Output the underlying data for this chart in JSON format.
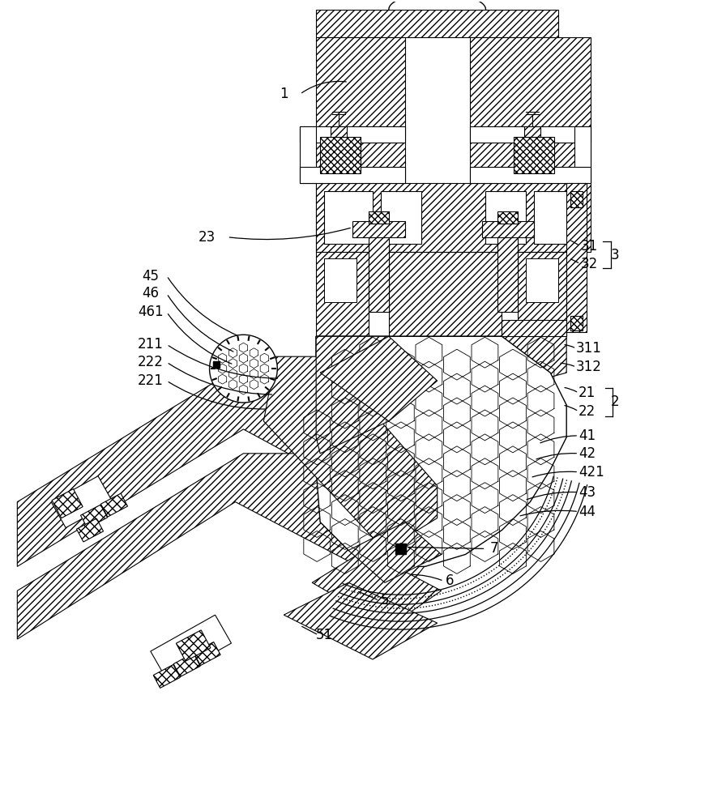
{
  "background_color": "#ffffff",
  "fig_width": 8.8,
  "fig_height": 10.0,
  "dpi": 100
}
